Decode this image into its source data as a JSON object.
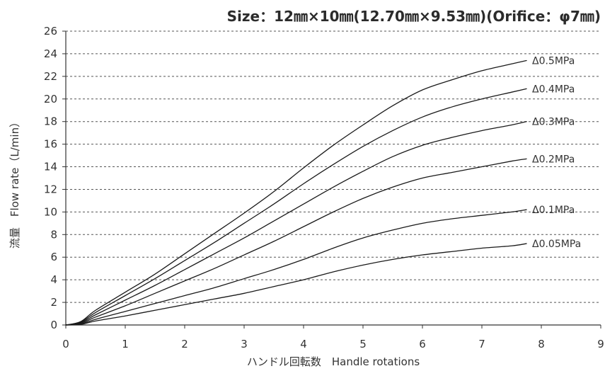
{
  "chart_data": {
    "type": "line",
    "title": "Size：12㎜×10㎜(12.70㎜×9.53㎜)(Orifice：φ7㎜)",
    "xlabel": "ハンドル回転数　Handle rotations",
    "ylabel": "流量　Flow rate（L/min）",
    "xlim": [
      0,
      9
    ],
    "ylim": [
      0,
      26
    ],
    "xticks": [
      0,
      1,
      2,
      3,
      4,
      5,
      6,
      7,
      8,
      9
    ],
    "yticks": [
      0,
      2,
      4,
      6,
      8,
      10,
      12,
      14,
      16,
      18,
      20,
      22,
      24,
      26
    ],
    "grid": "horizontal-dashed",
    "series": [
      {
        "name": "Δ0.5MPa",
        "x": [
          0,
          0.25,
          0.5,
          1,
          1.5,
          2,
          2.5,
          3,
          3.5,
          4,
          4.5,
          5,
          5.5,
          6,
          6.5,
          7,
          7.5,
          7.75
        ],
        "y": [
          0,
          0.3,
          1.3,
          2.9,
          4.5,
          6.3,
          8.1,
          9.9,
          11.8,
          13.9,
          15.9,
          17.7,
          19.4,
          20.8,
          21.7,
          22.5,
          23.1,
          23.4
        ]
      },
      {
        "name": "Δ0.4MPa",
        "x": [
          0,
          0.25,
          0.5,
          1,
          1.5,
          2,
          2.5,
          3,
          3.5,
          4,
          4.5,
          5,
          5.5,
          6,
          6.5,
          7,
          7.5,
          7.75
        ],
        "y": [
          0,
          0.25,
          1.1,
          2.6,
          4.1,
          5.7,
          7.3,
          9.0,
          10.7,
          12.5,
          14.2,
          15.8,
          17.2,
          18.4,
          19.3,
          20.0,
          20.6,
          20.9
        ]
      },
      {
        "name": "Δ0.3MPa",
        "x": [
          0,
          0.25,
          0.5,
          1,
          1.5,
          2,
          2.5,
          3,
          3.5,
          4,
          4.5,
          5,
          5.5,
          6,
          6.5,
          7,
          7.5,
          7.75
        ],
        "y": [
          0,
          0.2,
          0.9,
          2.2,
          3.5,
          4.9,
          6.3,
          7.7,
          9.2,
          10.7,
          12.2,
          13.6,
          14.9,
          15.9,
          16.6,
          17.2,
          17.7,
          18.0
        ]
      },
      {
        "name": "Δ0.2MPa",
        "x": [
          0,
          0.25,
          0.5,
          1,
          1.5,
          2,
          2.5,
          3,
          3.5,
          4,
          4.5,
          5,
          5.5,
          6,
          6.5,
          7,
          7.5,
          7.75
        ],
        "y": [
          0,
          0.15,
          0.7,
          1.7,
          2.8,
          3.9,
          5.0,
          6.2,
          7.4,
          8.7,
          10.0,
          11.2,
          12.2,
          13.0,
          13.5,
          14.0,
          14.5,
          14.7
        ]
      },
      {
        "name": "Δ0.1MPa",
        "x": [
          0,
          0.25,
          0.5,
          1,
          1.5,
          2,
          2.5,
          3,
          3.5,
          4,
          4.5,
          5,
          5.5,
          6,
          6.5,
          7,
          7.5,
          7.75
        ],
        "y": [
          0,
          0.1,
          0.5,
          1.2,
          1.9,
          2.6,
          3.3,
          4.1,
          4.9,
          5.8,
          6.8,
          7.7,
          8.4,
          9.0,
          9.4,
          9.7,
          10.0,
          10.2
        ]
      },
      {
        "name": "Δ0.05MPa",
        "x": [
          0,
          0.25,
          0.5,
          1,
          1.5,
          2,
          2.5,
          3,
          3.5,
          4,
          4.5,
          5,
          5.5,
          6,
          6.5,
          7,
          7.5,
          7.75
        ],
        "y": [
          0,
          0.05,
          0.35,
          0.8,
          1.3,
          1.8,
          2.3,
          2.8,
          3.4,
          4.0,
          4.7,
          5.3,
          5.8,
          6.2,
          6.5,
          6.8,
          7.0,
          7.2
        ]
      }
    ]
  },
  "colors": {
    "line": "#1a1a1a",
    "axis": "#333333",
    "grid": "#555555",
    "text": "#333333"
  }
}
